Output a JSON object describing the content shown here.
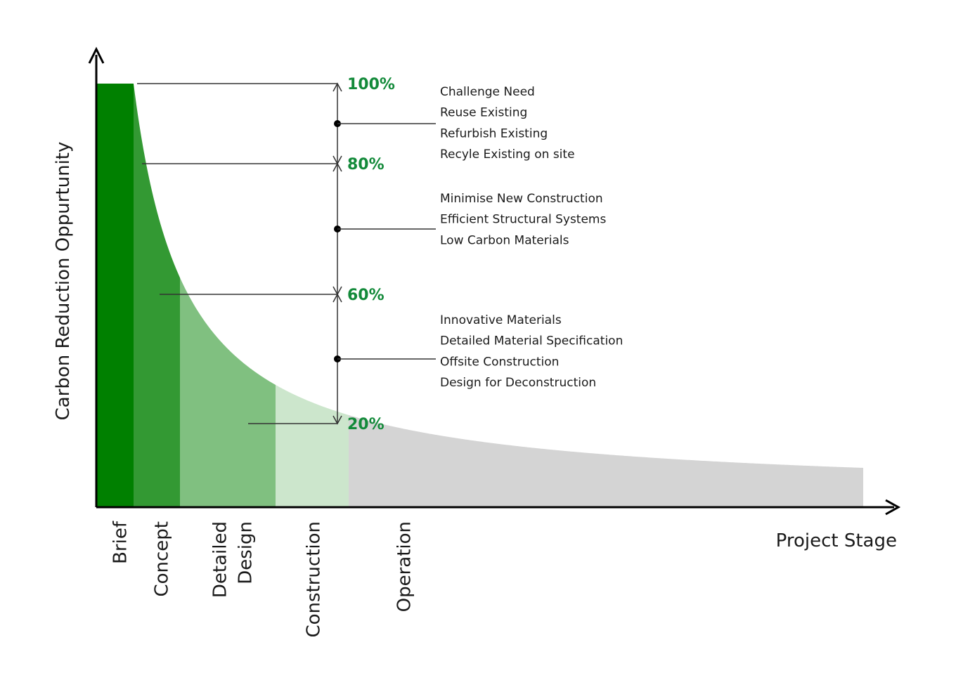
{
  "chart_data": {
    "type": "area",
    "title": "",
    "xlabel": "Project Stage",
    "ylabel": "Carbon Reduction Oppurtunity",
    "stages": [
      {
        "name": "Brief",
        "label_lines": [
          "Brief"
        ],
        "color": "#008000"
      },
      {
        "name": "Concept",
        "label_lines": [
          "Concept"
        ],
        "color": "#339933"
      },
      {
        "name": "Detailed Design",
        "label_lines": [
          "Detailed",
          "Design"
        ],
        "color": "#80c080"
      },
      {
        "name": "Construction",
        "label_lines": [
          "Construction"
        ],
        "color": "#cce6cc"
      },
      {
        "name": "Operation",
        "label_lines": [
          "Operation"
        ],
        "color": "#d4d4d4"
      }
    ],
    "levels": [
      {
        "label": "100%",
        "value": 100
      },
      {
        "label": "80%",
        "value": 80
      },
      {
        "label": "60%",
        "value": 60
      },
      {
        "label": "20%",
        "value": 20
      }
    ],
    "strategy_groups": [
      {
        "range": [
          80,
          100
        ],
        "items": [
          "Challenge Need",
          "Reuse Existing",
          "Refurbish Existing",
          "Recyle Existing on site"
        ]
      },
      {
        "range": [
          60,
          80
        ],
        "items": [
          "Minimise New Construction",
          "Efficient Structural Systems",
          "Low Carbon Materials"
        ]
      },
      {
        "range": [
          20,
          60
        ],
        "items": [
          "Innovative Materials",
          "Detailed Material Specification",
          "Offsite Construction",
          "Design for Deconstruction"
        ]
      }
    ],
    "legend": "none",
    "grid": false
  }
}
